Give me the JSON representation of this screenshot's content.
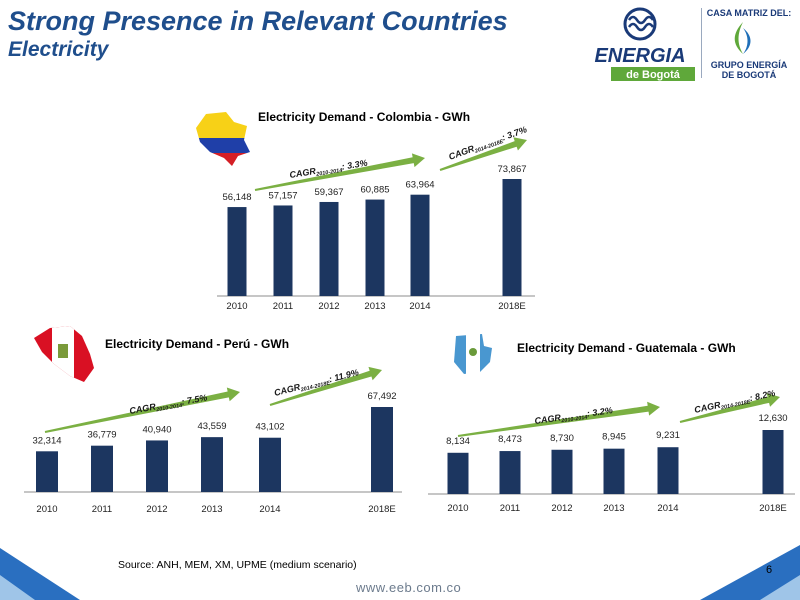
{
  "slide": {
    "title": "Strong Presence in Relevant Countries",
    "subtitle": "Electricity",
    "source": "Source: ANH, MEM, XM, UPME (medium scenario)",
    "page_number": "6",
    "url": "www.eeb.com.co"
  },
  "logo": {
    "brand_top": "ENERGIA",
    "brand_bottom": "de Bogotá",
    "casa_matriz": "CASA MATRIZ DEL:",
    "grupo_line1": "GRUPO ENERGÍA",
    "grupo_line2": "DE BOGOTÁ"
  },
  "colors": {
    "bar": "#1c3660",
    "arrow": "#7bb043",
    "title_blue": "#1f4e8c",
    "triangle_blue": "#2a6fc0"
  },
  "icons": [
    "colombia-map-icon",
    "peru-map-icon",
    "guatemala-map-icon",
    "energia-logo-icon",
    "grupo-energia-icon"
  ],
  "chart_data": [
    {
      "type": "bar",
      "title": "Electricity Demand - Colombia - GWh",
      "categories": [
        "2010",
        "2011",
        "2012",
        "2013",
        "2014",
        "2018E"
      ],
      "values": [
        56148,
        57157,
        59367,
        60885,
        63964,
        73867
      ],
      "value_labels": [
        "56,148",
        "57,157",
        "59,367",
        "60,885",
        "63,964",
        "73,867"
      ],
      "cagr_labels": [
        {
          "base": "CAGR",
          "sub": "2010-2014",
          "rest": ": 3.3%"
        },
        {
          "base": "CAGR",
          "sub": "2014-2018E",
          "rest": ": 3.7%"
        }
      ]
    },
    {
      "type": "bar",
      "title": "Electricity Demand - Perú - GWh",
      "categories": [
        "2010",
        "2011",
        "2012",
        "2013",
        "2014",
        "2018E"
      ],
      "values": [
        32314,
        36779,
        40940,
        43559,
        43102,
        67492
      ],
      "value_labels": [
        "32,314",
        "36,779",
        "40,940",
        "43,559",
        "43,102",
        "67,492"
      ],
      "cagr_labels": [
        {
          "base": "CAGR",
          "sub": "2010-2014",
          "rest": ": 7.5%"
        },
        {
          "base": "CAGR",
          "sub": "2014-2018E",
          "rest": ": 11.9%"
        }
      ]
    },
    {
      "type": "bar",
      "title": "Electricity Demand - Guatemala - GWh",
      "categories": [
        "2010",
        "2011",
        "2012",
        "2013",
        "2014",
        "2018E"
      ],
      "values": [
        8134,
        8473,
        8730,
        8945,
        9231,
        12630
      ],
      "value_labels": [
        "8,134",
        "8,473",
        "8,730",
        "8,945",
        "9,231",
        "12,630"
      ],
      "cagr_labels": [
        {
          "base": "CAGR",
          "sub": "2010-2014",
          "rest": ": 3.2%"
        },
        {
          "base": "CAGR",
          "sub": "2014-2018E",
          "rest": ": 8.2%"
        }
      ]
    }
  ]
}
